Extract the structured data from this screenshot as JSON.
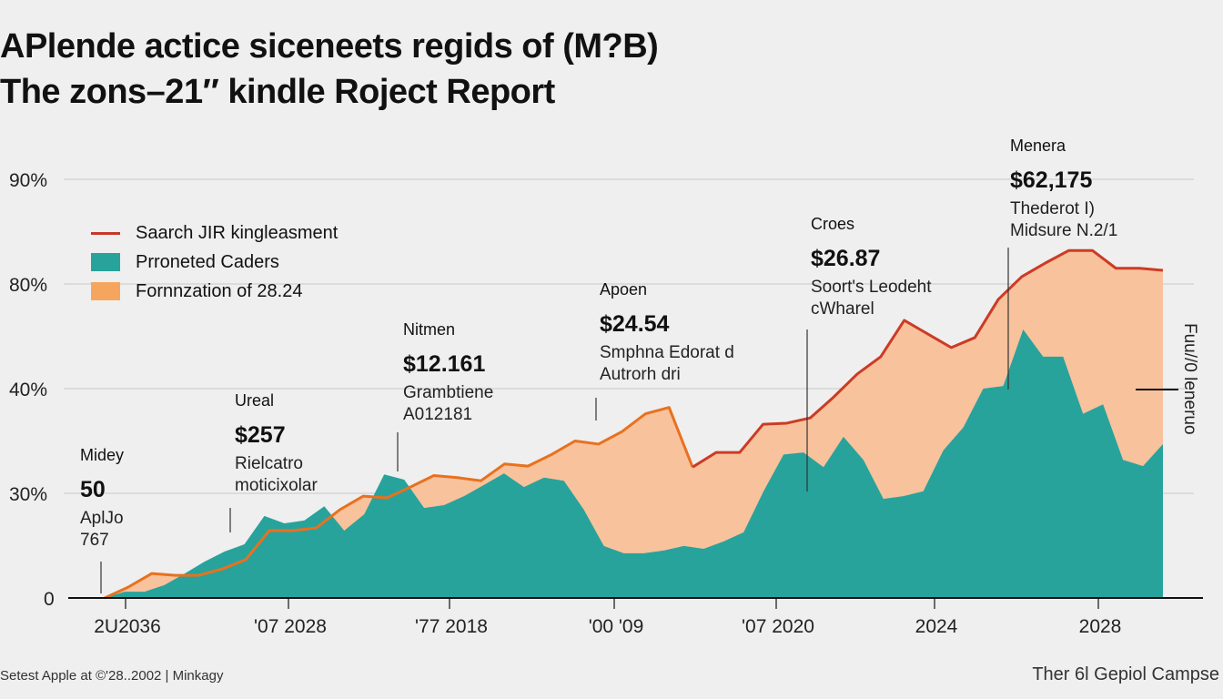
{
  "title_line1": "APlende actice sicenеets regids of (M?B)",
  "title_line2": "The zons–21″ kindle Roject Report",
  "legend": [
    {
      "label": "Saarch JIR kingleasment",
      "color": "#c8372a",
      "kind": "line"
    },
    {
      "label": "Prroneted Caders",
      "color": "#27a39c",
      "kind": "area"
    },
    {
      "label": "Fornnzation of 28.24",
      "color": "#f6a55f",
      "kind": "area"
    }
  ],
  "annotations": [
    {
      "label": "Midey",
      "value": "50",
      "desc": [
        "AplJo",
        "767"
      ]
    },
    {
      "label": "Ureal",
      "value": "$257",
      "desc": [
        "Rielcatro",
        "moticixolar"
      ]
    },
    {
      "label": "Nitmen",
      "value": "$12.161",
      "desc": [
        "Grambtiene",
        "A012181"
      ]
    },
    {
      "label": "Apoen",
      "value": "$24.54",
      "desc": [
        "Smphna Edorat d",
        "Autrorh dri"
      ]
    },
    {
      "label": "Croes",
      "value": "$26.87",
      "desc": [
        "Soort's Leodeht",
        "cWharel"
      ]
    },
    {
      "label": "Menera",
      "value": "$62,175",
      "desc": [
        "Thederot I)",
        "Midsure N.2/1"
      ]
    }
  ],
  "side_label": "Fuu//0 leneruo",
  "footer_left": "Setest Apple at ©'28..2002 | Minkagy",
  "footer_right": "Ther 6l Gepiol Campse",
  "chart_data": {
    "type": "area",
    "title": "APlende actice sicenеets regids of (M?B) The zons–21″ kindle Roject Report",
    "y_ticks": [
      0,
      30,
      40,
      80,
      90
    ],
    "y_tick_labels": [
      "0",
      "30%",
      "40%",
      "80%",
      "90%"
    ],
    "x_tick_labels": [
      "2U2036",
      "'07 2028",
      "'77 2018",
      "'00 '09",
      "'07 2020",
      "2024",
      "2028"
    ],
    "grid": true,
    "legend_position": "top-left",
    "series": [
      {
        "name": "Fornnzation of 28.24",
        "kind": "area-with-line",
        "fill": "#f8c29c",
        "line_colors": [
          "#e8711f",
          "#cc3b25"
        ],
        "values": [
          0,
          3.1,
          7.0,
          6.5,
          6.5,
          8.3,
          11.0,
          19.3,
          19.3,
          20.1,
          25.3,
          29.2,
          28.7,
          30.6,
          31.7,
          31.5,
          31.2,
          32.8,
          32.6,
          33.7,
          35.0,
          34.7,
          35.9,
          37.6,
          38.2,
          32.5,
          33.9,
          33.9,
          36.6,
          36.7,
          37.2,
          39.2,
          45.6,
          52.2,
          66.1,
          60.9,
          55.7,
          59.5,
          74.1,
          80.7,
          82.0,
          83.2,
          83.2,
          81.5,
          81.5,
          81.3
        ]
      },
      {
        "name": "Prroneted Caders",
        "kind": "area",
        "fill": "#27a39c",
        "values": [
          0,
          1.8,
          1.8,
          3.7,
          7.0,
          10.4,
          13.3,
          15.4,
          23.5,
          21.4,
          22.2,
          26.3,
          19.3,
          24.0,
          31.8,
          31.3,
          25.8,
          26.6,
          29.2,
          30.8,
          31.9,
          30.6,
          31.5,
          31.2,
          25.3,
          14.9,
          12.8,
          12.8,
          13.6,
          14.9,
          14.1,
          16.2,
          18.8,
          30.2,
          33.7,
          33.9,
          32.5,
          35.4,
          33.2,
          28.4,
          29.2,
          30.2,
          34.1,
          36.3,
          40.0,
          41.0,
          62.6,
          52.2,
          52.2,
          37.6,
          38.5,
          33.2,
          32.6,
          34.7
        ]
      }
    ]
  }
}
